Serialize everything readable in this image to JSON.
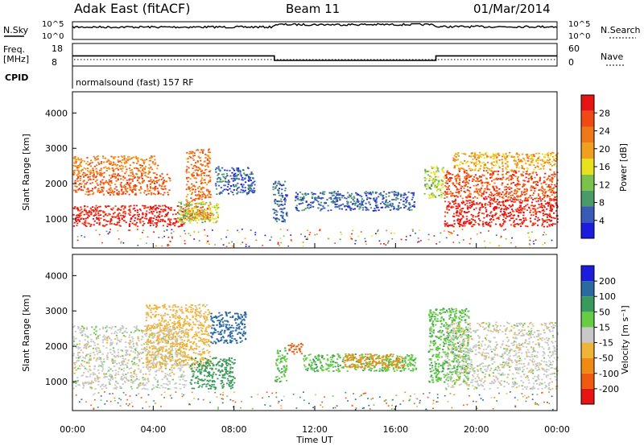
{
  "header": {
    "station": "Adak East (fitACF)",
    "beam": "Beam 11",
    "date": "01/Mar/2014"
  },
  "strip_labels": {
    "nsky": "N.Sky",
    "nsearch": "N.Search",
    "freq_line1": "Freq.",
    "freq_line2": "[MHz]",
    "nave": "Nave",
    "cpid": "CPID",
    "cpid_value": "normalsound (fast) 157 RF",
    "nsky_ticks": [
      "10^5",
      "10^0"
    ],
    "nsearch_ticks": [
      "10^5",
      "10^0"
    ],
    "freq_ticks": [
      "18",
      "8"
    ],
    "nave_ticks": [
      "60",
      "0"
    ]
  },
  "colors": {
    "power": [
      "#1c1cdc",
      "#3a5ab8",
      "#4a9a6a",
      "#7ac24a",
      "#e8e21e",
      "#f0a01e",
      "#f07818",
      "#f04a14",
      "#e81414"
    ],
    "velocity": [
      "#e81414",
      "#f05a10",
      "#f08a14",
      "#f0b43a",
      "#c8c8c8",
      "#66cc44",
      "#3a9a5a",
      "#2a6aa0",
      "#1c1cdc"
    ]
  },
  "chart_data": [
    {
      "type": "line",
      "title": "",
      "series": [
        {
          "name": "N.Sky",
          "x": [
            0,
            10,
            10,
            18,
            18,
            24
          ],
          "values": [
            3.5,
            3.5,
            4.2,
            4.2,
            3.6,
            3.6
          ]
        }
      ],
      "ylim": [
        0,
        5
      ],
      "yticks": [
        "10^0",
        "10^5"
      ]
    },
    {
      "type": "line",
      "series": [
        {
          "name": "Freq.",
          "x": [
            0,
            10,
            10,
            18,
            18,
            24
          ],
          "values": [
            12.5,
            12.5,
            10.5,
            10.5,
            12.5,
            12.5
          ]
        }
      ],
      "ylim": [
        8,
        18
      ],
      "yticks": [
        "8",
        "18"
      ]
    },
    {
      "type": "heatmap",
      "ylabel": "Slant Range [km]",
      "yticks": [
        "1000",
        "2000",
        "3000",
        "4000"
      ],
      "ylim": [
        180,
        4600
      ],
      "colorbar_label": "Power [dB]",
      "colorbar_ticks": [
        "4",
        "8",
        "12",
        "16",
        "20",
        "24",
        "28"
      ],
      "colorbar_range": [
        0,
        32
      ],
      "regions": [
        {
          "x": [
            0,
            5.6
          ],
          "y": [
            800,
            1400
          ],
          "value": 30
        },
        {
          "x": [
            0,
            4.8
          ],
          "y": [
            1700,
            2300
          ],
          "value": 25
        },
        {
          "x": [
            0,
            4.2
          ],
          "y": [
            2300,
            2800
          ],
          "value": 22
        },
        {
          "x": [
            5.6,
            6.8
          ],
          "y": [
            1000,
            3000
          ],
          "value": 24
        },
        {
          "x": [
            5.2,
            7.2
          ],
          "y": [
            900,
            1500
          ],
          "value": 14
        },
        {
          "x": [
            6.0,
            6.8
          ],
          "y": [
            1000,
            1300
          ],
          "value": 20
        },
        {
          "x": [
            7.0,
            9.0
          ],
          "y": [
            1700,
            2500
          ],
          "value": 6
        },
        {
          "x": [
            9.9,
            10.6
          ],
          "y": [
            900,
            2100
          ],
          "value": 6
        },
        {
          "x": [
            11.0,
            16.9
          ],
          "y": [
            1250,
            1800
          ],
          "value": 6
        },
        {
          "x": [
            17.4,
            18.4
          ],
          "y": [
            1600,
            2500
          ],
          "value": 14
        },
        {
          "x": [
            18.4,
            24
          ],
          "y": [
            800,
            1600
          ],
          "value": 30
        },
        {
          "x": [
            18.4,
            24
          ],
          "y": [
            1600,
            2400
          ],
          "value": 26
        },
        {
          "x": [
            18.8,
            24
          ],
          "y": [
            2400,
            2900
          ],
          "value": 20
        }
      ]
    },
    {
      "type": "heatmap",
      "ylabel": "Slant Range [km]",
      "xlabel": "Time UT",
      "yticks": [
        "1000",
        "2000",
        "3000",
        "4000"
      ],
      "ylim": [
        180,
        4600
      ],
      "xticks": [
        "00:00",
        "04:00",
        "08:00",
        "12:00",
        "16:00",
        "20:00",
        "00:00"
      ],
      "xlim": [
        0,
        24
      ],
      "colorbar_label": "Velocity [m s⁻¹]",
      "colorbar_ticks": [
        "-200",
        "-100",
        "-50",
        "-15",
        "15",
        "50",
        "100",
        "200"
      ],
      "regions": [
        {
          "x": [
            0,
            5.6
          ],
          "y": [
            800,
            2600
          ],
          "value": 0
        },
        {
          "x": [
            3.6,
            6.8
          ],
          "y": [
            1400,
            3200
          ],
          "value": -30
        },
        {
          "x": [
            5.8,
            8.0
          ],
          "y": [
            800,
            1700
          ],
          "value": 70
        },
        {
          "x": [
            6.8,
            8.6
          ],
          "y": [
            2100,
            3000
          ],
          "value": 160
        },
        {
          "x": [
            10.0,
            10.6
          ],
          "y": [
            1000,
            2000
          ],
          "value": 40
        },
        {
          "x": [
            10.6,
            11.4
          ],
          "y": [
            1800,
            2100
          ],
          "value": -180
        },
        {
          "x": [
            11.4,
            17.0
          ],
          "y": [
            1300,
            1800
          ],
          "value": 40
        },
        {
          "x": [
            13.4,
            16.4
          ],
          "y": [
            1400,
            1800
          ],
          "value": -80
        },
        {
          "x": [
            17.6,
            19.6
          ],
          "y": [
            1000,
            3100
          ],
          "value": 40
        },
        {
          "x": [
            18.4,
            24
          ],
          "y": [
            800,
            2700
          ],
          "value": 0
        }
      ]
    }
  ]
}
